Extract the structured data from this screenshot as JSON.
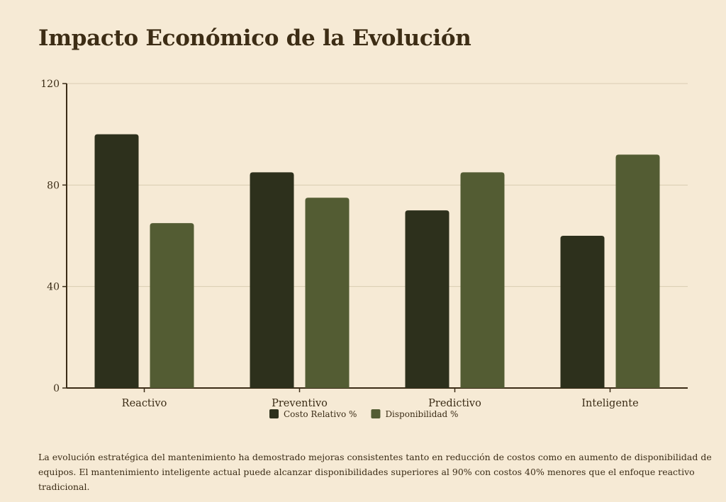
{
  "chart_data": {
    "type": "bar",
    "title": "Impacto Económico de la Evolución",
    "categories": [
      "Reactivo",
      "Preventivo",
      "Predictivo",
      "Inteligente"
    ],
    "series": [
      {
        "name": "Costo Relativo %",
        "values": [
          100,
          85,
          70,
          60
        ],
        "color": "#2d301c"
      },
      {
        "name": "Disponibilidad %",
        "values": [
          65,
          75,
          85,
          92
        ],
        "color": "#535c33"
      }
    ],
    "xlabel": "",
    "ylabel": "",
    "ylim": [
      0,
      120
    ],
    "yticks": [
      0,
      40,
      80,
      120
    ],
    "grid": true,
    "legend": "bottom"
  },
  "caption": "La evolución estratégica del mantenimiento ha demostrado mejoras consistentes tanto en reducción de costos como en aumento de disponibilidad de equipos. El mantenimiento inteligente actual puede alcanzar disponibilidades superiores al 90% con costos 40% menores que el enfoque reactivo tradicional."
}
